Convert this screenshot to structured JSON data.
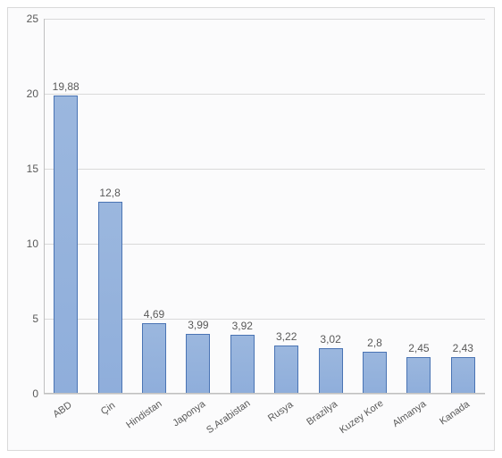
{
  "chart": {
    "type": "bar",
    "background_color": "#fbfbfc",
    "frame_border_color": "#d9d9d9",
    "grid_color": "#d9d9d9",
    "axis_color": "#c0c0c0",
    "label_color": "#595959",
    "bar_fill_top": "#9bb7de",
    "bar_fill_bottom": "#8faedb",
    "bar_border_color": "#4a74b4",
    "ylim": [
      0,
      25
    ],
    "ytick_step": 5,
    "yticks": [
      0,
      5,
      10,
      15,
      20,
      25
    ],
    "value_fontsize": 12,
    "tick_fontsize": 12,
    "xlabel_fontsize": 11,
    "xlabel_rotation_deg": -35,
    "bar_width_ratio": 0.55,
    "categories": [
      "ABD",
      "Çin",
      "Hindistan",
      "Japonya",
      "S.Arabistan",
      "Rusya",
      "Brazilya",
      "Kuzey Kore",
      "Almanya",
      "Kanada"
    ],
    "values": [
      19.88,
      12.8,
      4.69,
      3.99,
      3.92,
      3.22,
      3.02,
      2.8,
      2.45,
      2.43
    ],
    "value_labels": [
      "19,88",
      "12,8",
      "4,69",
      "3,99",
      "3,92",
      "3,22",
      "3,02",
      "2,8",
      "2,45",
      "2,43"
    ]
  }
}
